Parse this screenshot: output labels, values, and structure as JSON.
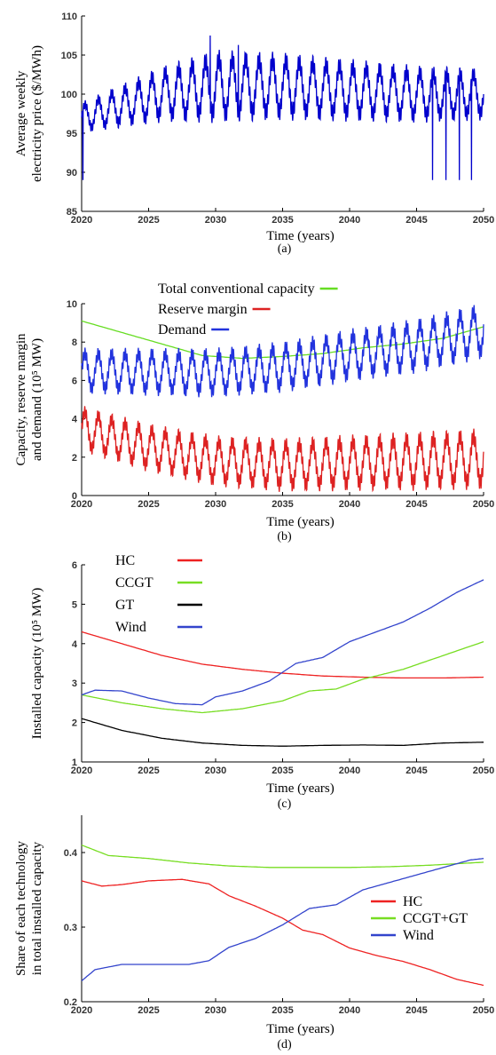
{
  "chart_data": [
    {
      "type": "line",
      "label": "(a)",
      "xlabel": "Time (years)",
      "ylabel_lines": [
        "Average weekly",
        "electricity price ($/MWh)"
      ],
      "xlim": [
        2020,
        2050
      ],
      "ylim": [
        85,
        110
      ],
      "xticks": [
        2020,
        2025,
        2030,
        2035,
        2040,
        2045,
        2050
      ],
      "yticks": [
        85,
        90,
        95,
        100,
        105,
        110
      ],
      "legend": [],
      "series": [
        {
          "color": "#0000cc",
          "trend": [
            [
              2020,
              97
            ],
            [
              2023,
              98.5
            ],
            [
              2026,
              100
            ],
            [
              2030,
              101
            ],
            [
              2035,
              101
            ],
            [
              2040,
              100.5
            ],
            [
              2045,
              100
            ],
            [
              2050,
              100
            ]
          ],
          "amplitude": [
            [
              2020,
              1.5
            ],
            [
              2030,
              3.5
            ],
            [
              2040,
              3
            ],
            [
              2050,
              2.5
            ]
          ],
          "spikes": [
            [
              2020.1,
              89
            ],
            [
              2029.6,
              107.5
            ],
            [
              2031.7,
              106.3
            ],
            [
              2046.2,
              89
            ],
            [
              2047.2,
              89
            ],
            [
              2048.2,
              89
            ],
            [
              2049.1,
              89
            ]
          ]
        }
      ]
    },
    {
      "type": "line",
      "label": "(b)",
      "xlabel": "Time (years)",
      "ylabel_lines": [
        "Capacity, reserve margin",
        "and demand (10⁵ MW)"
      ],
      "xlim": [
        2020,
        2050
      ],
      "ylim": [
        0,
        10
      ],
      "xticks": [
        2020,
        2025,
        2030,
        2035,
        2040,
        2045,
        2050
      ],
      "yticks": [
        0,
        2,
        4,
        6,
        8,
        10
      ],
      "legend": [
        {
          "name": "Total conventional capacity",
          "color": "#66dd22"
        },
        {
          "name": "Reserve margin",
          "color": "#dd2222"
        },
        {
          "name": "Demand",
          "color": "#2233dd"
        }
      ],
      "series": [
        {
          "color": "#66dd22",
          "points": [
            [
              2020,
              9.1
            ],
            [
              2023,
              8.5
            ],
            [
              2026,
              7.9
            ],
            [
              2029,
              7.3
            ],
            [
              2032,
              7.15
            ],
            [
              2035,
              7.25
            ],
            [
              2038,
              7.4
            ],
            [
              2041,
              7.7
            ],
            [
              2044,
              7.9
            ],
            [
              2047,
              8.2
            ],
            [
              2050,
              8.8
            ]
          ]
        },
        {
          "color": "#2233dd",
          "trend": [
            [
              2020,
              6.5
            ],
            [
              2030,
              6.4
            ],
            [
              2035,
              6.7
            ],
            [
              2040,
              7.3
            ],
            [
              2045,
              7.8
            ],
            [
              2050,
              8.6
            ]
          ],
          "amplitude": [
            [
              2020,
              0.9
            ],
            [
              2050,
              1.1
            ]
          ]
        },
        {
          "color": "#dd2222",
          "trend": [
            [
              2020,
              3.5
            ],
            [
              2025,
              2.5
            ],
            [
              2030,
              1.8
            ],
            [
              2035,
              1.6
            ],
            [
              2040,
              1.7
            ],
            [
              2045,
              1.8
            ],
            [
              2050,
              1.9
            ]
          ],
          "amplitude": [
            [
              2020,
              0.9
            ],
            [
              2050,
              1.2
            ]
          ]
        }
      ]
    },
    {
      "type": "line",
      "label": "(c)",
      "xlabel": "Time (years)",
      "ylabel_lines": [
        "Installed capacity (10⁵ MW)"
      ],
      "xlim": [
        2020,
        2050
      ],
      "ylim": [
        1,
        6
      ],
      "xticks": [
        2020,
        2025,
        2030,
        2035,
        2040,
        2045,
        2050
      ],
      "yticks": [
        1,
        2,
        3,
        4,
        5,
        6
      ],
      "legend": [
        {
          "name": "HC",
          "color": "#ee2222"
        },
        {
          "name": "CCGT",
          "color": "#77dd22"
        },
        {
          "name": "GT",
          "color": "#000000"
        },
        {
          "name": "Wind",
          "color": "#3344cc"
        }
      ],
      "series": [
        {
          "color": "#ee2222",
          "points": [
            [
              2020,
              4.3
            ],
            [
              2023,
              4
            ],
            [
              2026,
              3.7
            ],
            [
              2029,
              3.48
            ],
            [
              2032,
              3.35
            ],
            [
              2035,
              3.25
            ],
            [
              2038,
              3.18
            ],
            [
              2041,
              3.15
            ],
            [
              2044,
              3.13
            ],
            [
              2047,
              3.13
            ],
            [
              2050,
              3.15
            ]
          ]
        },
        {
          "color": "#77dd22",
          "points": [
            [
              2020,
              2.7
            ],
            [
              2023,
              2.5
            ],
            [
              2026,
              2.35
            ],
            [
              2029,
              2.25
            ],
            [
              2032,
              2.35
            ],
            [
              2035,
              2.55
            ],
            [
              2037,
              2.8
            ],
            [
              2039,
              2.85
            ],
            [
              2041,
              3.1
            ],
            [
              2044,
              3.35
            ],
            [
              2047,
              3.7
            ],
            [
              2050,
              4.05
            ]
          ]
        },
        {
          "color": "#000000",
          "points": [
            [
              2020,
              2.1
            ],
            [
              2023,
              1.8
            ],
            [
              2026,
              1.6
            ],
            [
              2029,
              1.48
            ],
            [
              2032,
              1.42
            ],
            [
              2035,
              1.4
            ],
            [
              2038,
              1.42
            ],
            [
              2041,
              1.43
            ],
            [
              2044,
              1.42
            ],
            [
              2047,
              1.48
            ],
            [
              2050,
              1.5
            ]
          ]
        },
        {
          "color": "#3344cc",
          "points": [
            [
              2020,
              2.7
            ],
            [
              2021,
              2.82
            ],
            [
              2023,
              2.8
            ],
            [
              2025,
              2.62
            ],
            [
              2027,
              2.48
            ],
            [
              2029,
              2.45
            ],
            [
              2030,
              2.65
            ],
            [
              2032,
              2.8
            ],
            [
              2034,
              3.05
            ],
            [
              2036,
              3.5
            ],
            [
              2038,
              3.65
            ],
            [
              2040,
              4.05
            ],
            [
              2042,
              4.3
            ],
            [
              2044,
              4.55
            ],
            [
              2046,
              4.9
            ],
            [
              2048,
              5.3
            ],
            [
              2050,
              5.62
            ]
          ]
        }
      ]
    },
    {
      "type": "line",
      "label": "(d)",
      "xlabel": "Time (years)",
      "ylabel_lines": [
        "Share of each technology",
        "in total installed capacity"
      ],
      "xlim": [
        2020,
        2050
      ],
      "ylim": [
        0.2,
        0.45
      ],
      "xticks": [
        2020,
        2025,
        2030,
        2035,
        2040,
        2045,
        2050
      ],
      "yticks": [
        0.2,
        0.3,
        0.4
      ],
      "legend": [
        {
          "name": "HC",
          "color": "#ee2222"
        },
        {
          "name": "CCGT+GT",
          "color": "#77dd22"
        },
        {
          "name": "Wind",
          "color": "#3344cc"
        }
      ],
      "series": [
        {
          "color": "#ee2222",
          "points": [
            [
              2020,
              0.362
            ],
            [
              2021.5,
              0.355
            ],
            [
              2023,
              0.357
            ],
            [
              2025,
              0.362
            ],
            [
              2027.5,
              0.364
            ],
            [
              2029.5,
              0.358
            ],
            [
              2031,
              0.342
            ],
            [
              2033,
              0.328
            ],
            [
              2035,
              0.312
            ],
            [
              2036.5,
              0.296
            ],
            [
              2038,
              0.29
            ],
            [
              2040,
              0.272
            ],
            [
              2042,
              0.262
            ],
            [
              2044,
              0.254
            ],
            [
              2046,
              0.243
            ],
            [
              2048,
              0.23
            ],
            [
              2050,
              0.222
            ]
          ]
        },
        {
          "color": "#77dd22",
          "points": [
            [
              2020,
              0.41
            ],
            [
              2022,
              0.396
            ],
            [
              2025,
              0.392
            ],
            [
              2028,
              0.386
            ],
            [
              2031,
              0.382
            ],
            [
              2034,
              0.38
            ],
            [
              2037,
              0.38
            ],
            [
              2040,
              0.38
            ],
            [
              2043,
              0.381
            ],
            [
              2046,
              0.383
            ],
            [
              2050,
              0.387
            ]
          ]
        },
        {
          "color": "#3344cc",
          "points": [
            [
              2020,
              0.228
            ],
            [
              2021,
              0.243
            ],
            [
              2023,
              0.25
            ],
            [
              2025,
              0.25
            ],
            [
              2028,
              0.25
            ],
            [
              2029.5,
              0.255
            ],
            [
              2031,
              0.273
            ],
            [
              2033,
              0.285
            ],
            [
              2035,
              0.303
            ],
            [
              2037,
              0.325
            ],
            [
              2039,
              0.33
            ],
            [
              2041,
              0.35
            ],
            [
              2043,
              0.36
            ],
            [
              2045,
              0.37
            ],
            [
              2047,
              0.38
            ],
            [
              2049,
              0.39
            ],
            [
              2050,
              0.392
            ]
          ]
        }
      ]
    }
  ]
}
